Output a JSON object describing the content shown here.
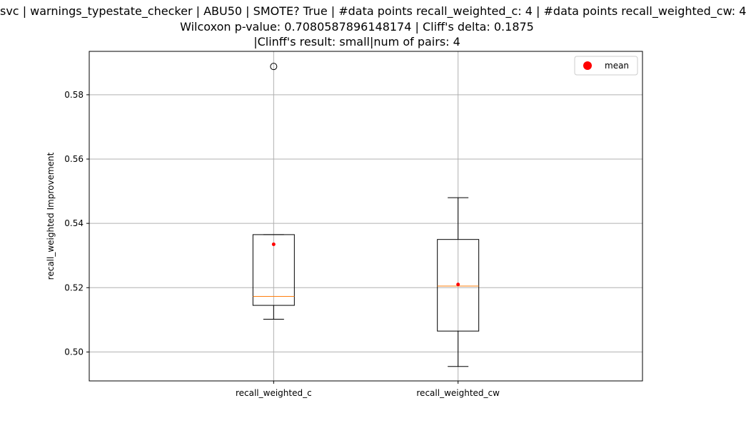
{
  "chart_data": {
    "type": "box",
    "title_lines": [
      "svc | warnings_typestate_checker | ABU50 | SMOTE? True | #data points recall_weighted_c: 4 | #data points recall_weighted_cw: 4",
      "Wilcoxon p-value: 0.7080587896148174 | Cliff's delta: 0.1875",
      "|Clinff's result: small|num of pairs: 4"
    ],
    "xlabel": "",
    "ylabel": "recall_weighted Improvement",
    "ylim": [
      0.491,
      0.5935
    ],
    "yticks": [
      0.5,
      0.52,
      0.54,
      0.56,
      0.58
    ],
    "ytick_labels": [
      "0.50",
      "0.52",
      "0.54",
      "0.56",
      "0.58"
    ],
    "grid": true,
    "legend": {
      "position": "top-right",
      "entries": [
        {
          "label": "mean",
          "color": "#ff0000"
        }
      ]
    },
    "categories": [
      "recall_weighted_c",
      "recall_weighted_cw"
    ],
    "boxes": [
      {
        "name": "recall_weighted_c",
        "whisker_low": 0.5102,
        "q1": 0.5145,
        "median": 0.5173,
        "q3": 0.5365,
        "whisker_high": 0.5365,
        "mean": 0.5335,
        "outliers": [
          0.5888
        ]
      },
      {
        "name": "recall_weighted_cw",
        "whisker_low": 0.4955,
        "q1": 0.5065,
        "median": 0.5205,
        "q3": 0.535,
        "whisker_high": 0.548,
        "mean": 0.521,
        "outliers": []
      }
    ],
    "colors": {
      "box": "#000000",
      "median": "#ff7f0e",
      "mean": "#ff0000",
      "grid": "#b0b0b0"
    }
  }
}
